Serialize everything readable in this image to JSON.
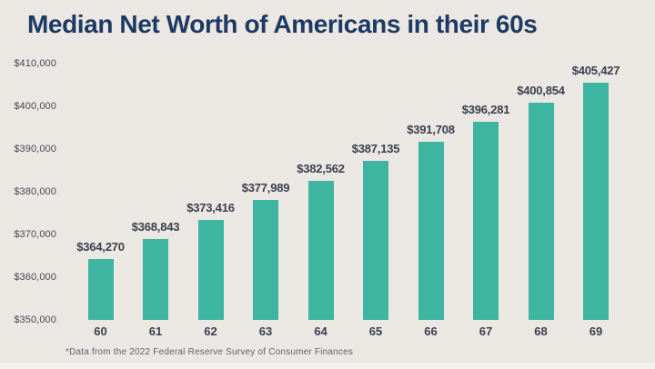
{
  "page": {
    "title": "Median Net Worth of Americans in their 60s",
    "footnote": "*Data from the 2022 Federal Reserve Survey of Consumer Finances"
  },
  "colors": {
    "background": "#ebe7e2",
    "bar": "#3eb5a0",
    "title": "#1d3a64",
    "value_label": "#3a404e",
    "axis_label": "#474b56",
    "footnote": "#5f6472"
  },
  "chart_data": {
    "type": "bar",
    "title": "Median Net Worth of Americans in their 60s",
    "xlabel": "",
    "ylabel": "",
    "categories": [
      "60",
      "61",
      "62",
      "63",
      "64",
      "65",
      "66",
      "67",
      "68",
      "69"
    ],
    "values": [
      364270,
      368843,
      373416,
      377989,
      382562,
      387135,
      391708,
      396281,
      400854,
      405427
    ],
    "value_labels": [
      "$364,270",
      "$368,843",
      "$373,416",
      "$377,989",
      "$382,562",
      "$387,135",
      "$391,708",
      "$396,281",
      "$400,854",
      "$405,427"
    ],
    "ylim": [
      350000,
      410000
    ],
    "ytick_step": 10000,
    "ytick_labels": [
      "$350,000",
      "$360,000",
      "$370,000",
      "$380,000",
      "$390,000",
      "$400,000",
      "$410,000"
    ],
    "grid": false,
    "legend": false,
    "footnote": "*Data from the 2022 Federal Reserve Survey of Consumer Finances"
  }
}
